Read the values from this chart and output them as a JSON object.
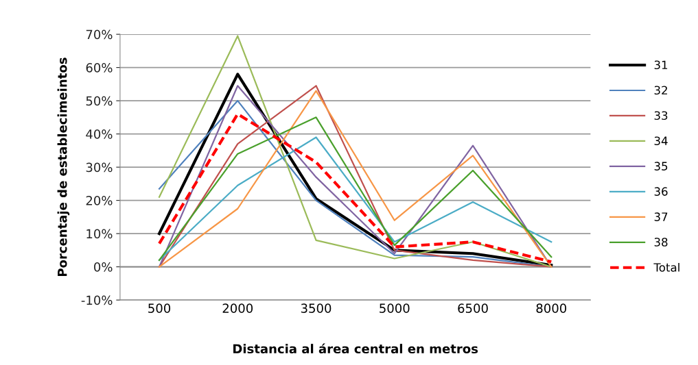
{
  "chart_data": {
    "type": "line",
    "xlabel": "Distancia al área central en metros",
    "ylabel": "Porcentaje de establecimeintos",
    "categories": [
      "500",
      "2000",
      "3500",
      "5000",
      "6500",
      "8000"
    ],
    "ylim": [
      -10,
      70
    ],
    "yticks": [
      {
        "value": -10,
        "label": "-10%"
      },
      {
        "value": 0,
        "label": "0%"
      },
      {
        "value": 10,
        "label": "10%"
      },
      {
        "value": 20,
        "label": "20%"
      },
      {
        "value": 30,
        "label": "30%"
      },
      {
        "value": 40,
        "label": "40%"
      },
      {
        "value": 50,
        "label": "50%"
      },
      {
        "value": 60,
        "label": "60%"
      },
      {
        "value": 70,
        "label": "70%"
      }
    ],
    "grid": "y",
    "legend": "right",
    "marker": "none",
    "series": [
      {
        "name": "31",
        "color": "#000000",
        "values": [
          10,
          58,
          20.5,
          5,
          4,
          0.5
        ]
      },
      {
        "name": "32",
        "color": "#4f81bd",
        "values": [
          23.5,
          50,
          20,
          3.5,
          3,
          0
        ]
      },
      {
        "name": "33",
        "color": "#c0504d",
        "values": [
          0,
          37,
          54.5,
          5,
          2,
          0
        ]
      },
      {
        "name": "34",
        "color": "#9bbb59",
        "values": [
          21,
          69.5,
          8,
          2.5,
          7.5,
          0
        ]
      },
      {
        "name": "35",
        "color": "#8064a2",
        "values": [
          0,
          54.5,
          27,
          4,
          36.5,
          0
        ]
      },
      {
        "name": "36",
        "color": "#4bacc6",
        "values": [
          2,
          24.5,
          39,
          7.5,
          19.5,
          7.5
        ]
      },
      {
        "name": "37",
        "color": "#f79646",
        "values": [
          0,
          17.5,
          53,
          14,
          33.5,
          0
        ]
      },
      {
        "name": "38",
        "color": "#4aa02c",
        "values": [
          2,
          34,
          45,
          6.5,
          29,
          3
        ]
      },
      {
        "name": "Total",
        "color": "#ff0000",
        "line_style": "dashed",
        "values": [
          7,
          46,
          31.5,
          6,
          7.5,
          1.5
        ]
      }
    ]
  }
}
